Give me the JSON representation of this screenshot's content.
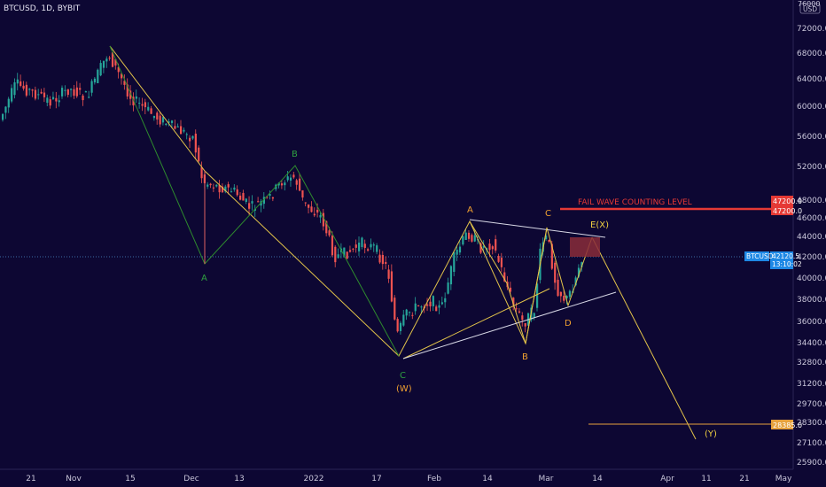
{
  "header": {
    "title": "BTCUSD, 1D, BYBIT"
  },
  "axis": {
    "currency": "USD",
    "partial_top_label": "76000",
    "y_ticks": [
      "72000.0",
      "68000.0",
      "64000.0",
      "60000.0",
      "56000.0",
      "52000.0",
      "48000.0",
      "46000.0",
      "44000.0",
      "42000.0",
      "40000.0",
      "38000.0",
      "36000.0",
      "34400.0",
      "32800.0",
      "31200.0",
      "29700.0",
      "28300.0",
      "27100.0",
      "25900.0"
    ],
    "x_ticks": [
      "21",
      "Nov",
      "15",
      "Dec",
      "13",
      "2022",
      "17",
      "Feb",
      "14",
      "Mar",
      "14",
      "Apr",
      "11",
      "21",
      "May"
    ],
    "y_log": true
  },
  "price_tags": {
    "current_value": "42120.5",
    "current_symbol": "BTCUSD",
    "current_time": "13:10:02",
    "level_high_1": "47200.0",
    "level_high_2": "47200.0",
    "level_low": "28385.0",
    "current_color": "#1e88e5",
    "level_high_color": "#e53935",
    "level_low_color": "#e6a13c"
  },
  "annotations": {
    "fail_wave_text": "FAIL WAVE COUNTING LEVEL",
    "green_A": "A",
    "green_B": "B",
    "green_C": "C",
    "W_label": "(W)",
    "orange_A": "A",
    "orange_B": "B",
    "orange_C": "C",
    "orange_D": "D",
    "E_X_label": "E(X)",
    "Y_label": "(Y)"
  },
  "colors": {
    "background": "#0d0733",
    "up_candle": "#26a69a",
    "down_candle": "#ef5350",
    "yellow_line": "#e2c34a",
    "green_line": "#2e8b2e",
    "white_line": "#d8d8e6",
    "orange_text": "#f0a030",
    "green_text": "#2fa040"
  },
  "chart_data": {
    "type": "candlestick",
    "title": "BTCUSD, 1D, BYBIT",
    "y_scale": "log",
    "ylim": [
      25000,
      76000
    ],
    "x_range": [
      "2021-10-21",
      "2022-05-10"
    ],
    "key_points": [
      {
        "date": "2021-11-10",
        "price": 69000
      },
      {
        "date": "2021-12-04",
        "price": 42000
      },
      {
        "date": "2021-12-27",
        "price": 52000
      },
      {
        "date": "2022-01-24",
        "price": 33000
      },
      {
        "date": "2022-02-10",
        "price": 45800
      },
      {
        "date": "2022-02-24",
        "price": 34400
      },
      {
        "date": "2022-03-02",
        "price": 45400
      },
      {
        "date": "2022-03-07",
        "price": 37500
      },
      {
        "date": "2022-03-10",
        "price": 42120.5
      }
    ],
    "horizontal_levels": [
      {
        "label": "FAIL WAVE COUNTING LEVEL",
        "value": 47200.0
      },
      {
        "label": "",
        "value": 28385.0
      }
    ],
    "last_close": 42120.5
  }
}
